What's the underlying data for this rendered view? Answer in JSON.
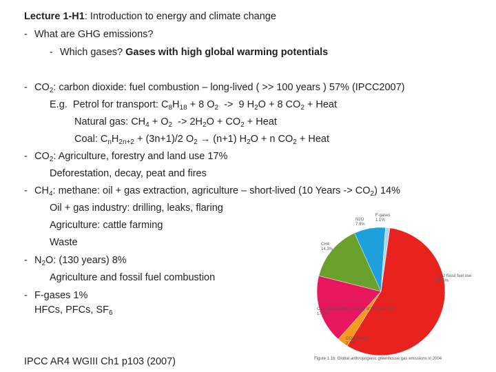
{
  "heading": {
    "bold": "Lecture 1-H1",
    "rest": ": Introduction to energy and climate change"
  },
  "items": [
    [
      "What are GHG emissions?"
    ],
    [
      "Which gases? ",
      "Gases with high global warming potentials"
    ],
    [
      "CO",
      "2",
      ": carbon dioxide: fuel combustion – long-lived ( >> 100 years ) 57% (IPCC2007)"
    ],
    [
      "E.g.  Petrol for transport: C",
      "8",
      "H",
      "18",
      " + 8 O",
      "2",
      "  ->  9 H",
      "2",
      "O + 8 CO",
      "2",
      " + Heat"
    ],
    [
      "Natural gas: CH",
      "4",
      " + O",
      "2",
      "  -> 2H",
      "2",
      "O + CO",
      "2",
      " + Heat"
    ],
    [
      "Coal: C",
      "n",
      "H",
      "2n+2",
      " + (3n+1)/2 O",
      "2",
      " → (n+1) H",
      "2",
      "O + n CO",
      "2",
      " + Heat"
    ],
    [
      "CO",
      "2",
      ": Agriculture, forestry and land use 17%"
    ],
    [
      "Deforestation, decay, peat and fires"
    ],
    [
      "CH",
      "4",
      ": methane: oil + gas extraction, agriculture – short-lived (10 Years -> CO",
      "2",
      ") 14%"
    ],
    [
      "Oil + gas industry: drilling, leaks, flaring"
    ],
    [
      "Agriculture: cattle farming"
    ],
    [
      "Waste"
    ],
    [
      "N",
      "2",
      "O: (130 years) 8%"
    ],
    [
      "Agriculture and fossil fuel combustion"
    ],
    [
      "F-gases 1%"
    ],
    [
      "HFCs, PFCs, SF",
      "6"
    ]
  ],
  "footer": "IPCC AR4 WGIII Ch1 p103 (2007)",
  "chart_data": {
    "type": "pie",
    "categories": [
      "CO2 fossil fuel use",
      "CO2 (other)",
      "CO2 (deforestation, decay of biomass, etc)",
      "CH4",
      "N2O",
      "F-gases"
    ],
    "values": [
      56.6,
      2.8,
      17.3,
      14.3,
      7.9,
      1.1
    ],
    "value_labels": [
      "56.6%",
      "2.8%",
      "17.3%",
      "14.3%",
      "7.9%",
      "1.1%"
    ],
    "colors": [
      "#e8231f",
      "#f59a1c",
      "#e8175d",
      "#6aa12e",
      "#1ea0dc",
      "#a8d8f4"
    ],
    "caption": "Figure 1.1b: Global anthropogenic greenhouse gas emissions in 2004"
  }
}
